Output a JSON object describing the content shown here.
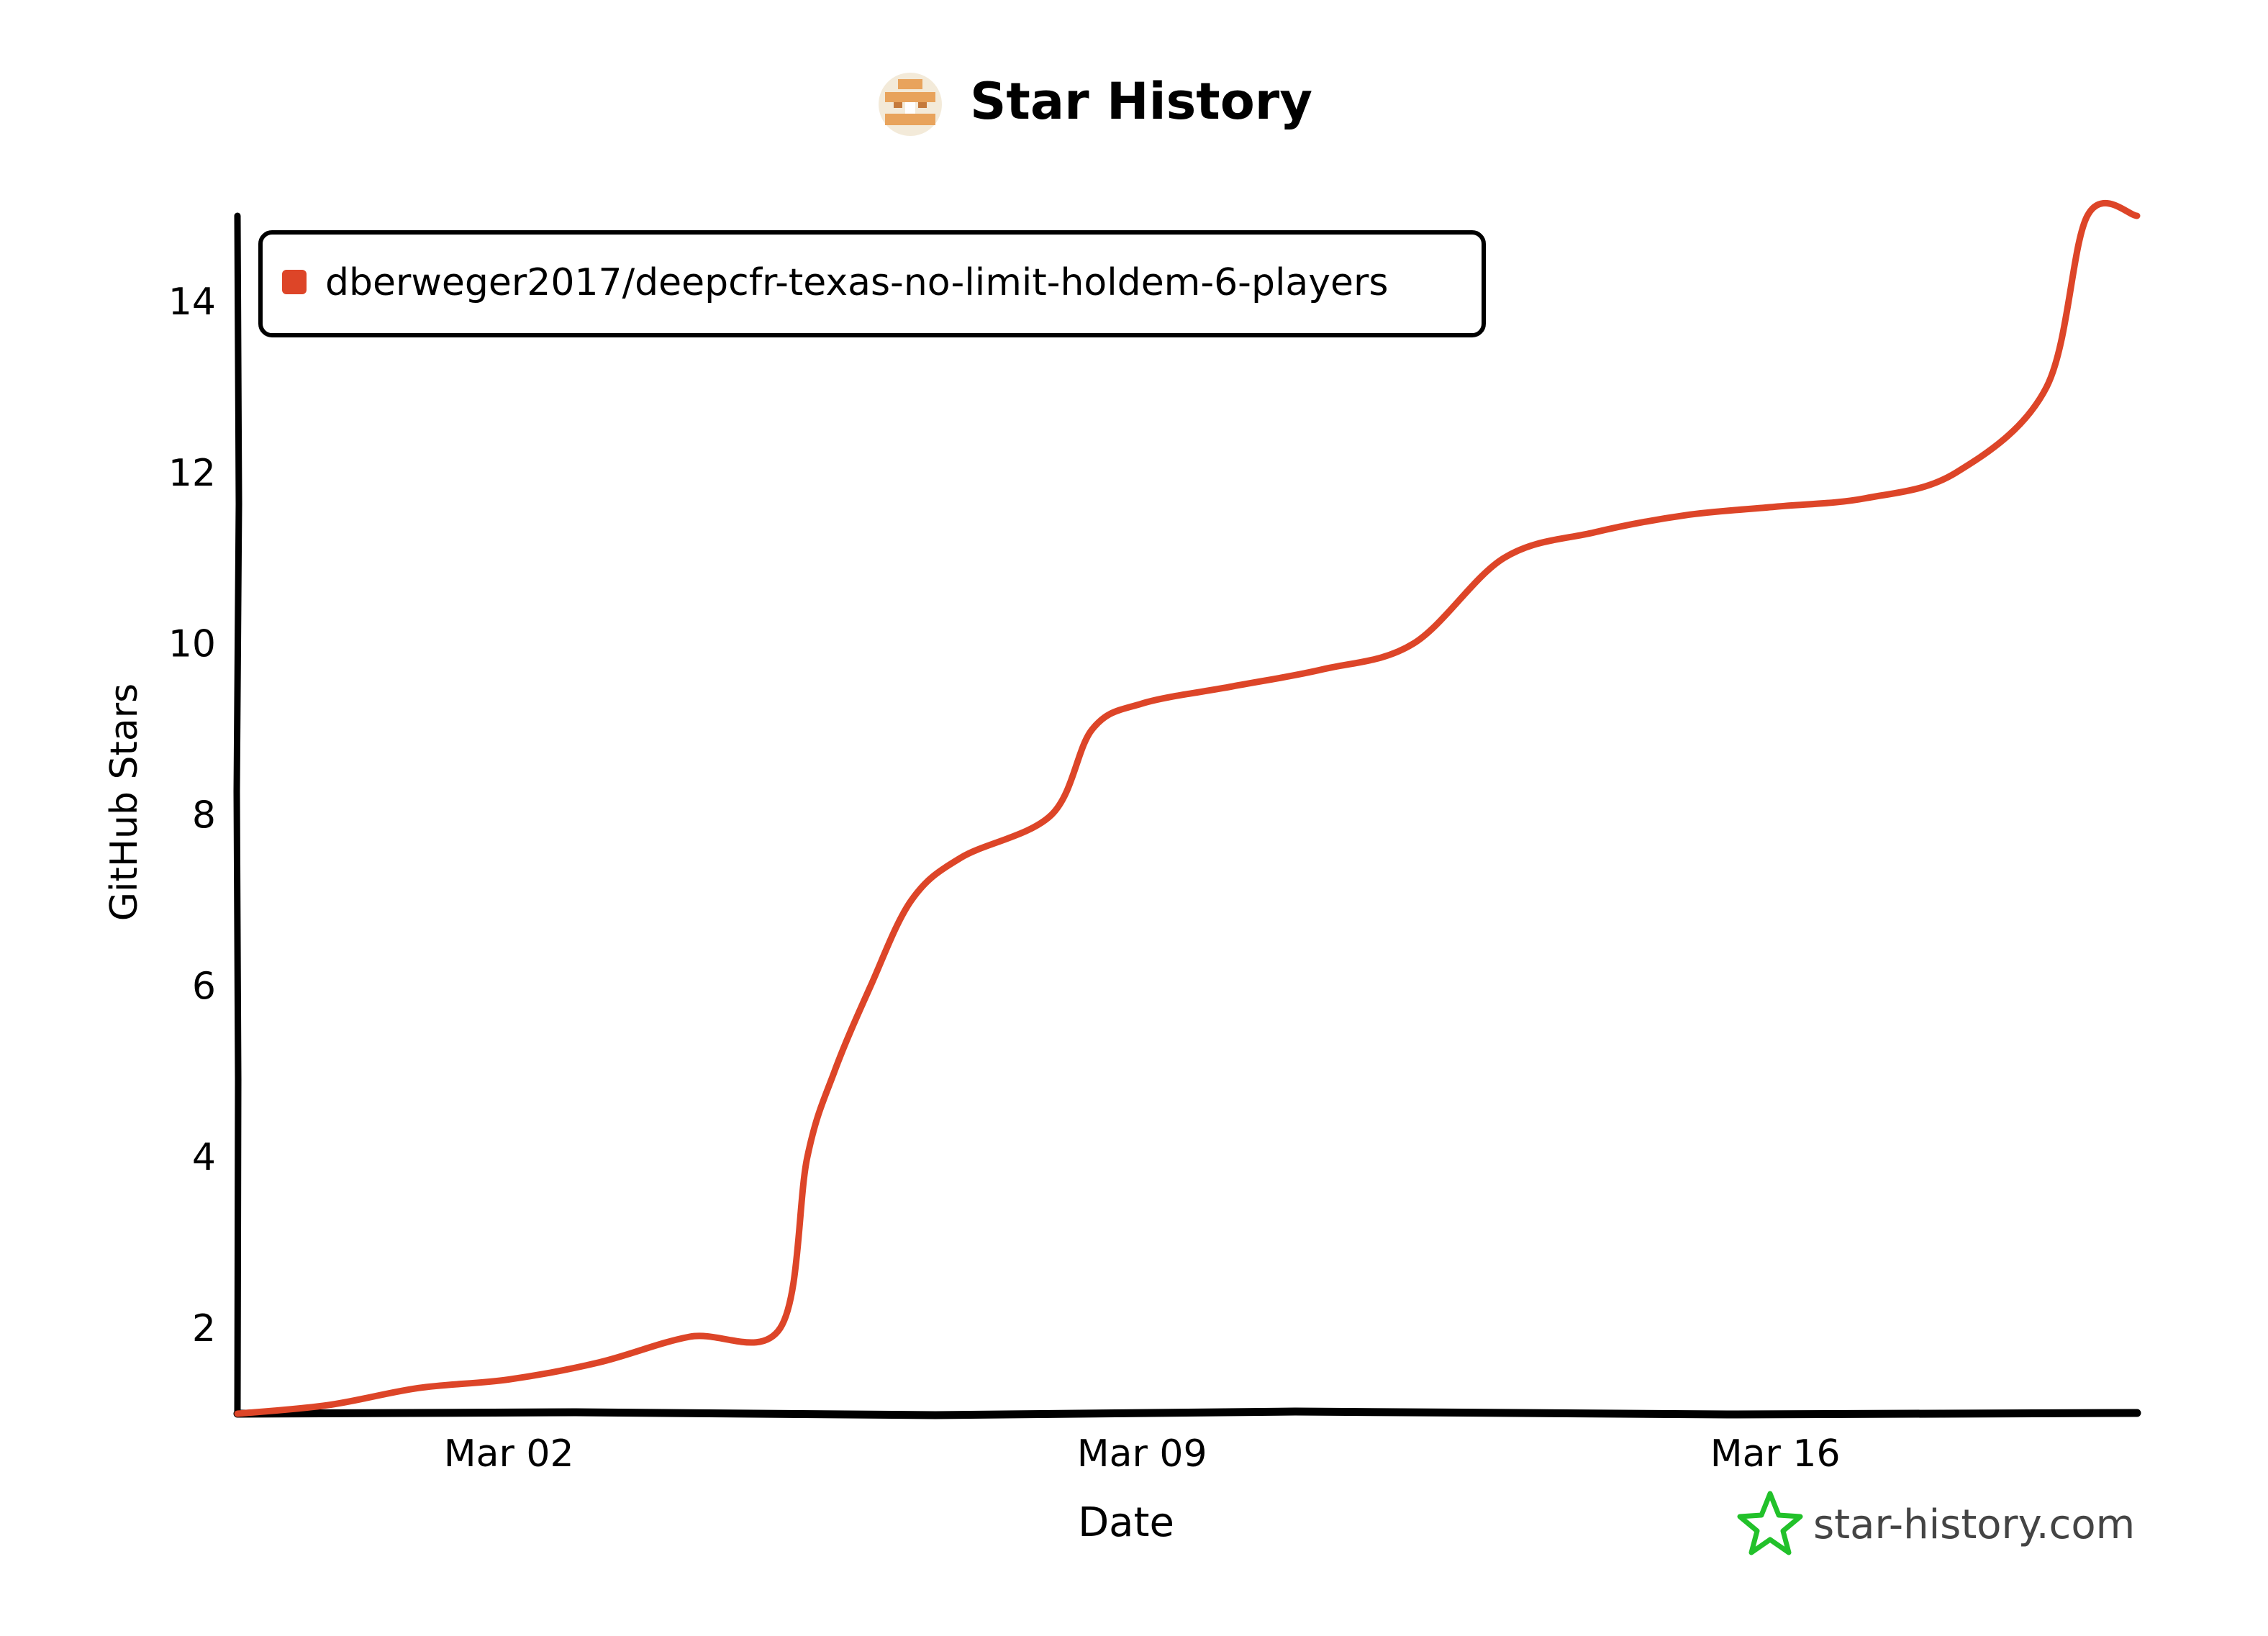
{
  "title": "Star History",
  "logo_icon": "star-history-logo-icon",
  "watermark": {
    "icon": "green-star-icon",
    "text": "star-history.com",
    "color": "#22c12a"
  },
  "colors": {
    "series": "#dd4528",
    "axis": "#000000",
    "logo_orange": "#e8a35c"
  },
  "chart_data": {
    "type": "line",
    "title": "Star History",
    "xlabel": "Date",
    "ylabel": "GitHub Stars",
    "x_ticks": [
      "Mar 02",
      "Mar 09",
      "Mar 16"
    ],
    "y_ticks": [
      2,
      4,
      6,
      8,
      10,
      12,
      14
    ],
    "xlim": [
      "2025-02-27",
      "2025-03-20"
    ],
    "ylim": [
      1,
      15
    ],
    "grid": false,
    "legend_position": "top-left",
    "series": [
      {
        "name": "dberweger2017/deepcfr-texas-no-limit-holdem-6-players",
        "color": "#dd4528",
        "points": [
          {
            "x": "2025-02-27",
            "y": 1
          },
          {
            "x": "2025-02-28",
            "y": 1.1
          },
          {
            "x": "2025-03-01",
            "y": 1.3
          },
          {
            "x": "2025-03-02",
            "y": 1.4
          },
          {
            "x": "2025-03-03",
            "y": 1.6
          },
          {
            "x": "2025-03-04",
            "y": 1.9
          },
          {
            "x": "2025-03-05",
            "y": 2.0
          },
          {
            "x": "2025-03-05",
            "y": 4
          },
          {
            "x": "2025-03-05",
            "y": 5
          },
          {
            "x": "2025-03-06",
            "y": 6
          },
          {
            "x": "2025-03-06",
            "y": 7
          },
          {
            "x": "2025-03-07",
            "y": 7.5
          },
          {
            "x": "2025-03-08",
            "y": 8
          },
          {
            "x": "2025-03-08",
            "y": 9
          },
          {
            "x": "2025-03-09",
            "y": 9.3
          },
          {
            "x": "2025-03-10",
            "y": 9.5
          },
          {
            "x": "2025-03-11",
            "y": 9.7
          },
          {
            "x": "2025-03-12",
            "y": 10
          },
          {
            "x": "2025-03-13",
            "y": 11
          },
          {
            "x": "2025-03-14",
            "y": 11.3
          },
          {
            "x": "2025-03-15",
            "y": 11.5
          },
          {
            "x": "2025-03-16",
            "y": 11.6
          },
          {
            "x": "2025-03-17",
            "y": 11.7
          },
          {
            "x": "2025-03-18",
            "y": 12
          },
          {
            "x": "2025-03-19",
            "y": 13
          },
          {
            "x": "2025-03-19",
            "y": 15
          },
          {
            "x": "2025-03-20",
            "y": 15
          }
        ]
      }
    ]
  }
}
